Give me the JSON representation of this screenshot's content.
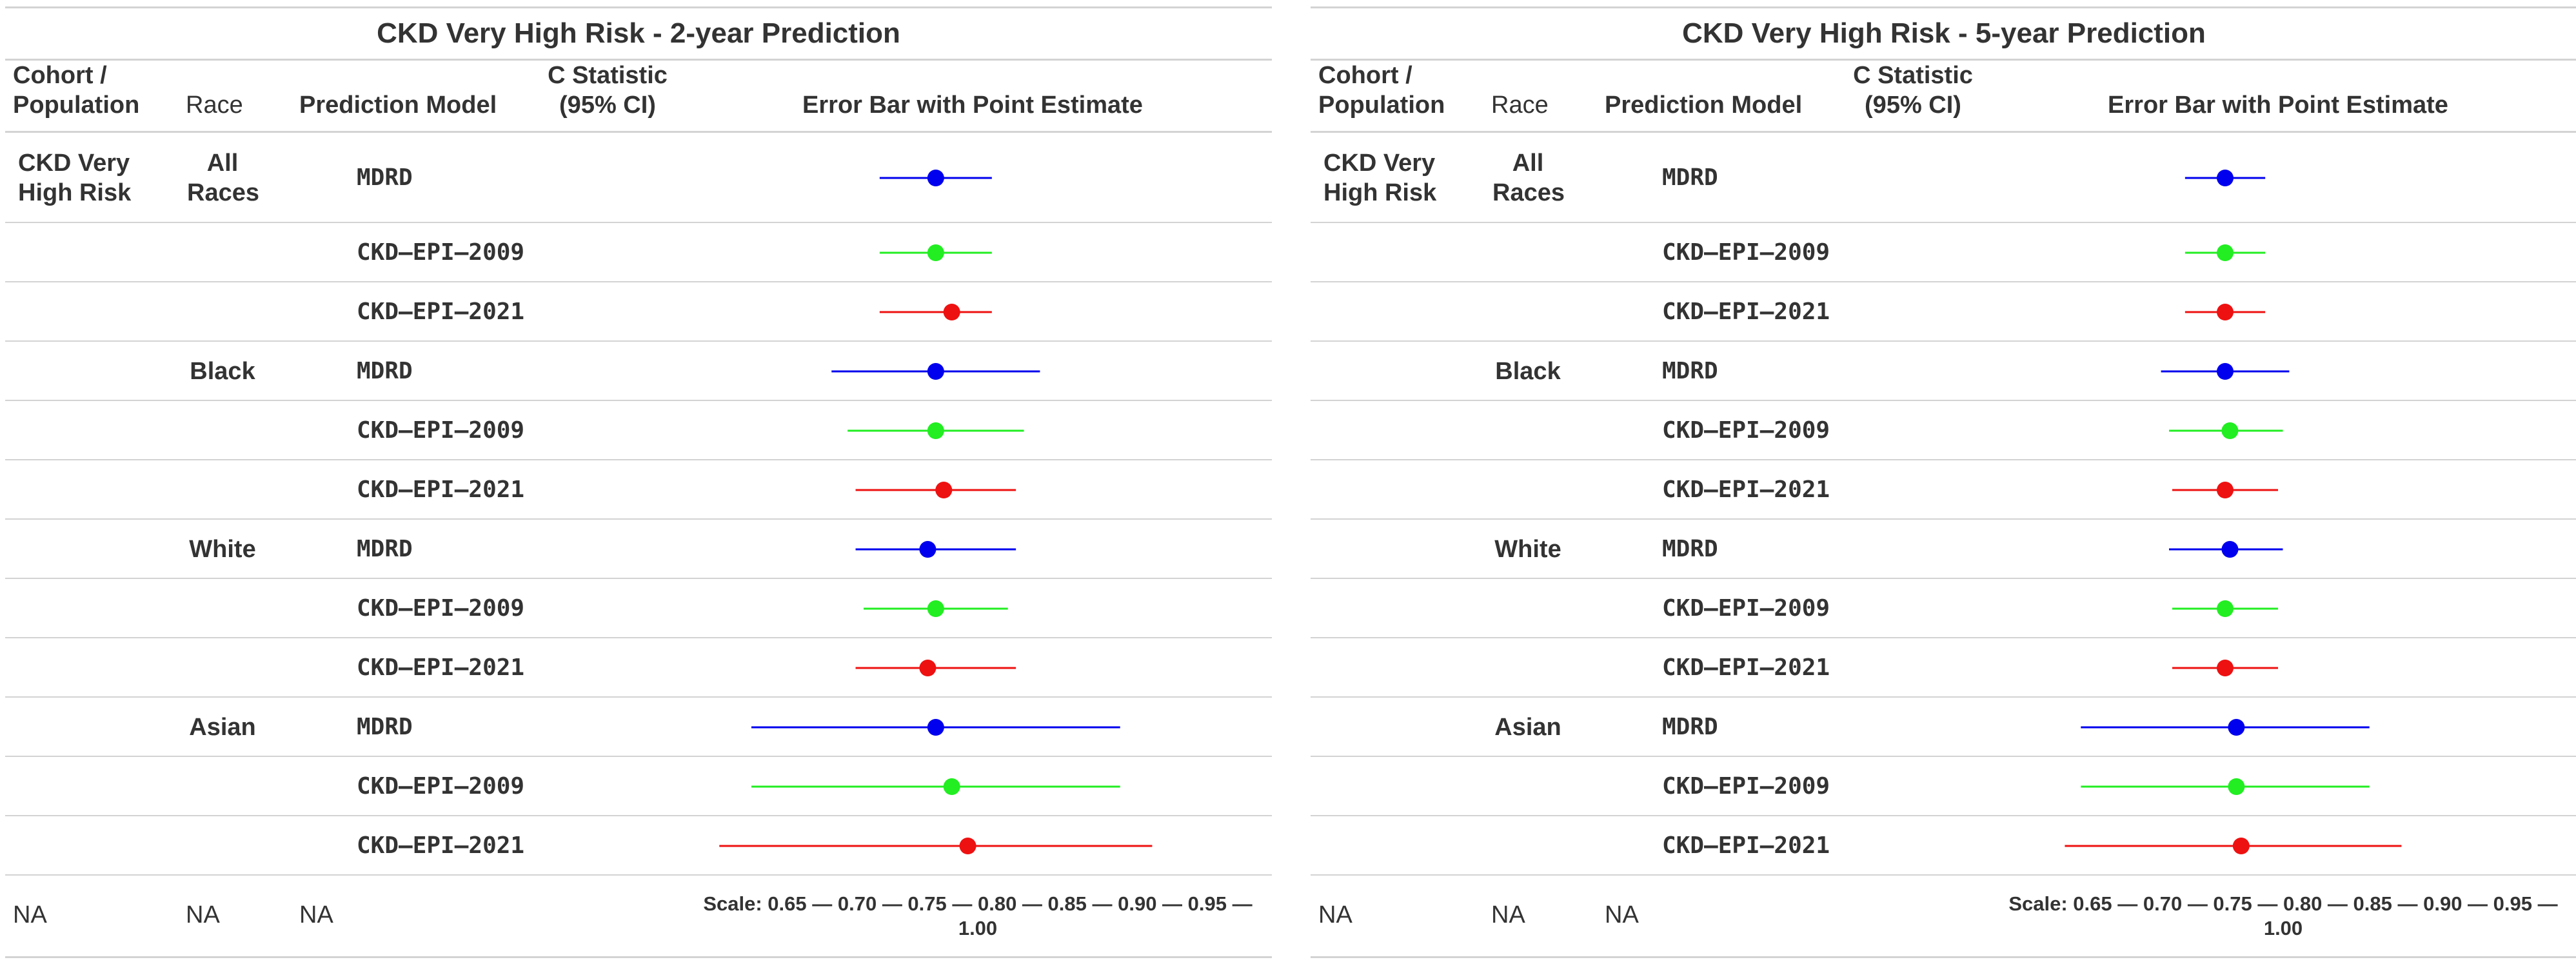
{
  "headers": {
    "cohort": "Cohort /\nPopulation",
    "race": "Race",
    "model": "Prediction Model",
    "cstat": "C Statistic\n(95% CI)",
    "errorbar": "Error Bar with Point Estimate"
  },
  "colors": {
    "MDRD": "#0000ee",
    "CKD–EPI–2009": "#22ee22",
    "CKD–EPI–2021": "#ee1111"
  },
  "footer": {
    "cohort": "NA",
    "race": "NA",
    "model": "NA",
    "scale": "Scale: 0.65 — 0.70 — 0.75 — 0.80 — 0.85 — 0.90 — 0.95 — 1.00"
  },
  "chart_data": [
    {
      "type": "forest",
      "title": "CKD Very High Risk - 2-year Prediction",
      "xlim": [
        0.65,
        1.0
      ],
      "rows": [
        {
          "cohort": "CKD Very\nHigh Risk",
          "race": "All\nRaces",
          "model": "MDRD",
          "est": 0.8,
          "lo": 0.765,
          "hi": 0.835
        },
        {
          "cohort": "",
          "race": "",
          "model": "CKD–EPI–2009",
          "est": 0.8,
          "lo": 0.765,
          "hi": 0.835
        },
        {
          "cohort": "",
          "race": "",
          "model": "CKD–EPI–2021",
          "est": 0.81,
          "lo": 0.765,
          "hi": 0.835
        },
        {
          "cohort": "",
          "race": "Black",
          "model": "MDRD",
          "est": 0.8,
          "lo": 0.735,
          "hi": 0.865
        },
        {
          "cohort": "",
          "race": "",
          "model": "CKD–EPI–2009",
          "est": 0.8,
          "lo": 0.745,
          "hi": 0.855
        },
        {
          "cohort": "",
          "race": "",
          "model": "CKD–EPI–2021",
          "est": 0.805,
          "lo": 0.75,
          "hi": 0.85
        },
        {
          "cohort": "",
          "race": "White",
          "model": "MDRD",
          "est": 0.795,
          "lo": 0.75,
          "hi": 0.85
        },
        {
          "cohort": "",
          "race": "",
          "model": "CKD–EPI–2009",
          "est": 0.8,
          "lo": 0.755,
          "hi": 0.845
        },
        {
          "cohort": "",
          "race": "",
          "model": "CKD–EPI–2021",
          "est": 0.795,
          "lo": 0.75,
          "hi": 0.85
        },
        {
          "cohort": "",
          "race": "Asian",
          "model": "MDRD",
          "est": 0.8,
          "lo": 0.685,
          "hi": 0.915
        },
        {
          "cohort": "",
          "race": "",
          "model": "CKD–EPI–2009",
          "est": 0.81,
          "lo": 0.685,
          "hi": 0.915
        },
        {
          "cohort": "",
          "race": "",
          "model": "CKD–EPI–2021",
          "est": 0.82,
          "lo": 0.665,
          "hi": 0.935
        }
      ]
    },
    {
      "type": "forest",
      "title": "CKD Very High Risk - 5-year Prediction",
      "xlim": [
        0.65,
        1.0
      ],
      "rows": [
        {
          "cohort": "CKD Very\nHigh Risk",
          "race": "All\nRaces",
          "model": "MDRD",
          "est": 0.79,
          "lo": 0.765,
          "hi": 0.815
        },
        {
          "cohort": "",
          "race": "",
          "model": "CKD–EPI–2009",
          "est": 0.79,
          "lo": 0.765,
          "hi": 0.815
        },
        {
          "cohort": "",
          "race": "",
          "model": "CKD–EPI–2021",
          "est": 0.79,
          "lo": 0.765,
          "hi": 0.815
        },
        {
          "cohort": "",
          "race": "Black",
          "model": "MDRD",
          "est": 0.79,
          "lo": 0.75,
          "hi": 0.83
        },
        {
          "cohort": "",
          "race": "",
          "model": "CKD–EPI–2009",
          "est": 0.793,
          "lo": 0.755,
          "hi": 0.826
        },
        {
          "cohort": "",
          "race": "",
          "model": "CKD–EPI–2021",
          "est": 0.79,
          "lo": 0.757,
          "hi": 0.823
        },
        {
          "cohort": "",
          "race": "White",
          "model": "MDRD",
          "est": 0.793,
          "lo": 0.755,
          "hi": 0.826
        },
        {
          "cohort": "",
          "race": "",
          "model": "CKD–EPI–2009",
          "est": 0.79,
          "lo": 0.757,
          "hi": 0.823
        },
        {
          "cohort": "",
          "race": "",
          "model": "CKD–EPI–2021",
          "est": 0.79,
          "lo": 0.757,
          "hi": 0.823
        },
        {
          "cohort": "",
          "race": "Asian",
          "model": "MDRD",
          "est": 0.797,
          "lo": 0.7,
          "hi": 0.88
        },
        {
          "cohort": "",
          "race": "",
          "model": "CKD–EPI–2009",
          "est": 0.797,
          "lo": 0.7,
          "hi": 0.88
        },
        {
          "cohort": "",
          "race": "",
          "model": "CKD–EPI–2021",
          "est": 0.8,
          "lo": 0.69,
          "hi": 0.9
        }
      ]
    }
  ]
}
